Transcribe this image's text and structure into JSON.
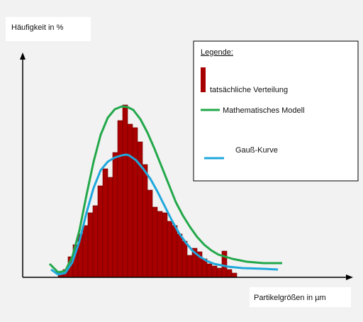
{
  "chart_data": {
    "type": "histogram",
    "ylabel": "Häufigkeit in %",
    "xlabel": "Partikelgrößen in µm",
    "legend_title": "Legende:",
    "xlim": [
      0,
      463
    ],
    "ylim": [
      0,
      316
    ],
    "bins": [
      50,
      57,
      64,
      71,
      78,
      85,
      92,
      99,
      106,
      113,
      120,
      127,
      134,
      141,
      148,
      155,
      162,
      169,
      176,
      183,
      190,
      197,
      204,
      211,
      218,
      225,
      232,
      239,
      246,
      253,
      260,
      267,
      274,
      281,
      288,
      295,
      302
    ],
    "series": [
      {
        "name": "tatsächliche Verteilung",
        "color": "#a80000",
        "values": [
          6,
          11,
          29,
          46,
          61,
          73,
          91,
          101,
          129,
          153,
          141,
          176,
          221,
          243,
          216,
          211,
          191,
          159,
          123,
          99,
          93,
          91,
          79,
          73,
          61,
          51,
          31,
          41,
          36,
          26,
          19,
          16,
          13,
          37,
          11,
          6
        ]
      }
    ],
    "curves": [
      {
        "name": "Mathematisches Modell",
        "color": "#22a84a",
        "x": [
          38,
          50,
          60,
          70,
          80,
          90,
          100,
          110,
          120,
          130,
          140,
          148,
          156,
          166,
          176,
          186,
          196,
          206,
          216,
          226,
          236,
          246,
          256,
          266,
          276,
          296,
          316,
          340,
          366
        ],
        "y": [
          19,
          7,
          9,
          29,
          66,
          116,
          163,
          201,
          225,
          237,
          241,
          240,
          236,
          223,
          204,
          181,
          156,
          131,
          106,
          87,
          71,
          57,
          46,
          38,
          32,
          26,
          22,
          20,
          20
        ]
      },
      {
        "name": "Gauß-Kurve",
        "color": "#1ea7dc",
        "x": [
          40,
          50,
          60,
          70,
          80,
          90,
          100,
          110,
          120,
          130,
          140,
          146,
          150,
          160,
          170,
          180,
          190,
          200,
          210,
          220,
          230,
          240,
          250,
          260,
          270,
          290,
          310,
          340,
          360
        ],
        "y": [
          11,
          4,
          6,
          21,
          51,
          91,
          126,
          151,
          163,
          169,
          172,
          173,
          172,
          165,
          153,
          139,
          121,
          101,
          81,
          63,
          49,
          37,
          29,
          23,
          19,
          15,
          13,
          12,
          11
        ]
      }
    ]
  }
}
